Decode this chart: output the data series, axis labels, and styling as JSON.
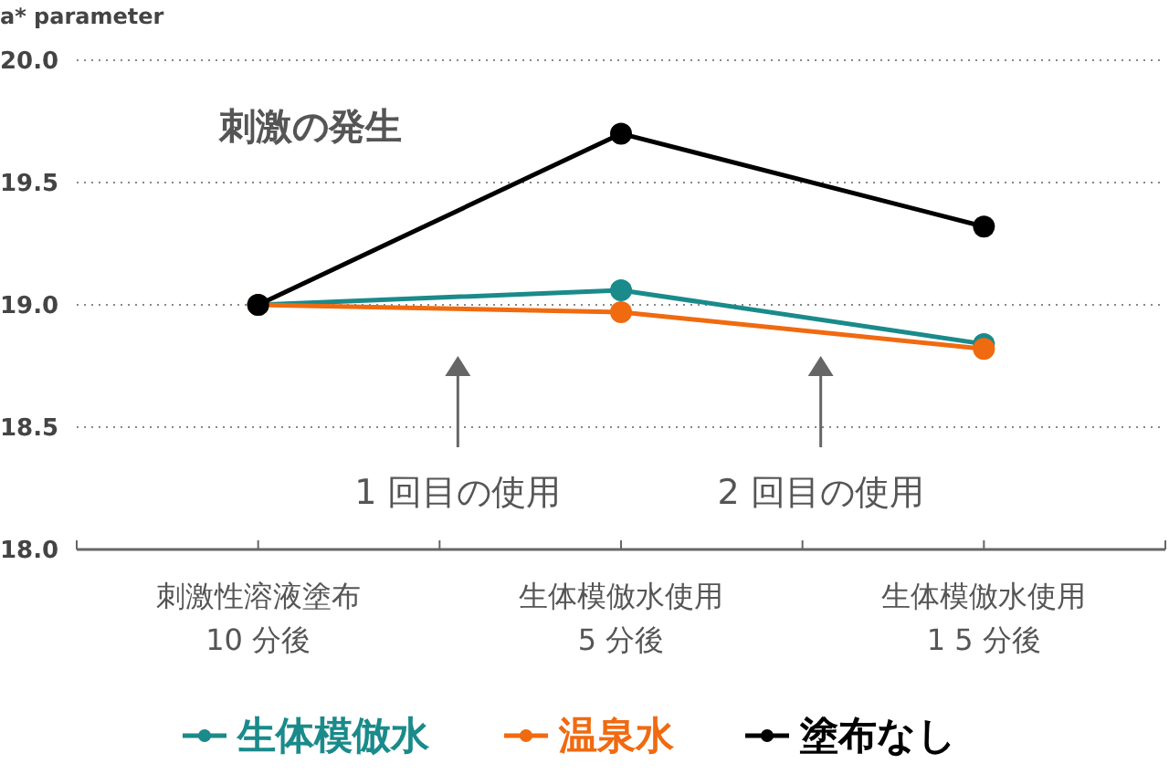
{
  "chart_data": {
    "type": "line",
    "ylabel": "a* parameter",
    "categories": [
      "刺激性溶液塗布\n10 分後",
      "生体模倣水使用\n5 分後",
      "生体模倣水使用\n1 5 分後"
    ],
    "series": [
      {
        "name": "生体模倣水",
        "color": "#1a8a8a",
        "values": [
          19.0,
          19.06,
          18.84
        ]
      },
      {
        "name": "温泉水",
        "color": "#f06a10",
        "values": [
          19.0,
          18.97,
          18.82
        ]
      },
      {
        "name": "塗布なし",
        "color": "#000000",
        "values": [
          19.0,
          19.7,
          19.32
        ]
      }
    ],
    "ylim": [
      18.0,
      20.0
    ],
    "yticks": [
      {
        "value": 18.0,
        "label": "18.0"
      },
      {
        "value": 18.5,
        "label": "18.5"
      },
      {
        "value": 19.0,
        "label": "19.0"
      },
      {
        "value": 19.5,
        "label": "19.5"
      },
      {
        "value": 20.0,
        "label": "20.0"
      }
    ],
    "grid": "y",
    "legend": "bottom",
    "marker": "circle",
    "line_style": "solid",
    "annotations": [
      "刺激の発生",
      "1 回目の使用",
      "2 回目の使用"
    ]
  }
}
